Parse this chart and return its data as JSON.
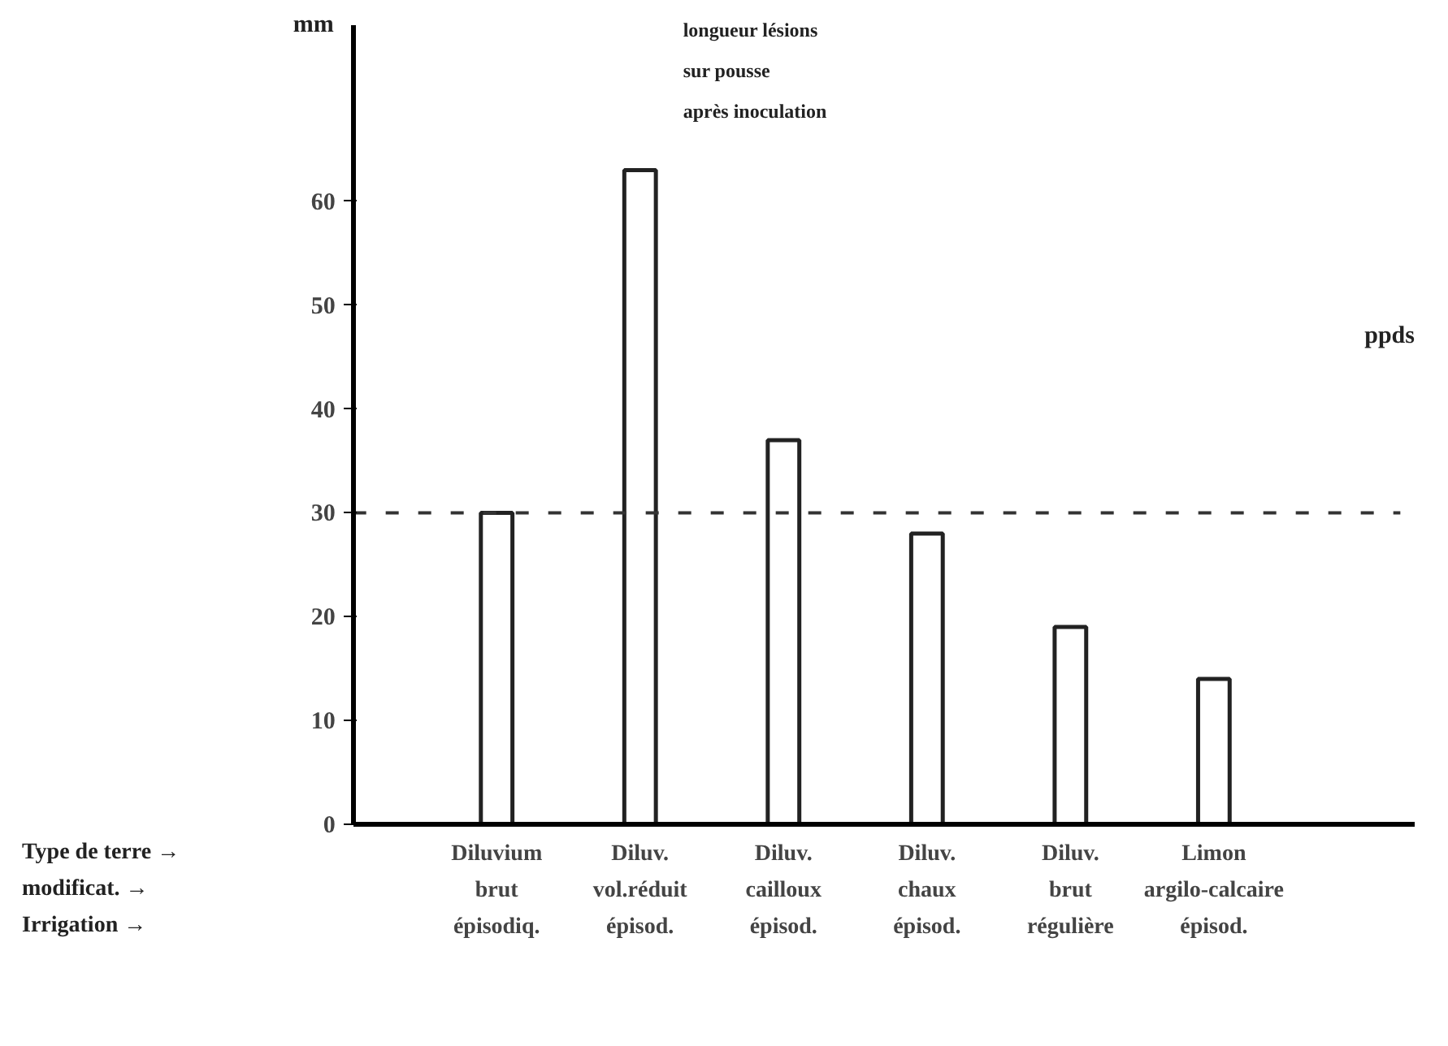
{
  "chart_data": {
    "type": "bar",
    "title": "longueur lésions\nsur pousse\naprès inoculation",
    "ylabel": "mm",
    "categories": [
      "Diluvium\nbrut\népisodiq.",
      "Diluv.\nvol.réduit\népisod.",
      "Diluv.\ncailloux\népisod.",
      "Diluv.\nchaux\népisod.",
      "Diluv.\nbrut\nrégulière",
      "Limon\nargilo-calcaire\népisod."
    ],
    "values": [
      30,
      63,
      37,
      28,
      19,
      14
    ],
    "color": "#ffffff",
    "ylim": [
      0,
      77
    ],
    "yticks": [
      0,
      10,
      20,
      30,
      40,
      50,
      60
    ],
    "ref_lines": [
      {
        "axis": "y",
        "value": 30,
        "label": null,
        "line_style": "dashed",
        "color": "#333333"
      }
    ],
    "annotations": [
      "Type de terre →\nmodificat. →\nIrrigation →",
      "ppds"
    ],
    "grid": false
  }
}
